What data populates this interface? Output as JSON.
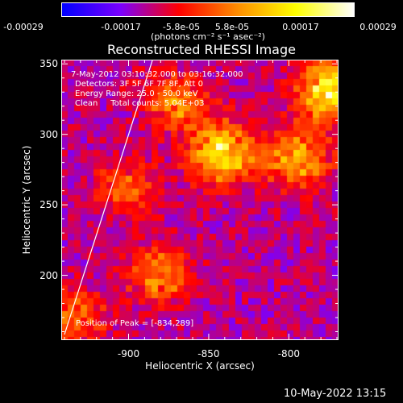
{
  "chart_data": {
    "type": "heatmap",
    "title": "Reconstructed RHESSI Image",
    "xlabel": "Heliocentric X (arcsec)",
    "ylabel": "Heliocentric Y (arcsec)",
    "xlim": [
      -942,
      -769
    ],
    "ylim": [
      154,
      353
    ],
    "x_ticks": [
      "-900",
      "-850",
      "-800"
    ],
    "x_tick_values": [
      -900,
      -850,
      -800
    ],
    "y_ticks": [
      "200",
      "250",
      "300",
      "350"
    ],
    "y_tick_values": [
      200,
      250,
      300,
      350
    ],
    "colorbar": {
      "ticks": [
        "-0.00029",
        "-0.00017",
        "-5.8e-05",
        "5.8e-05",
        "0.00017",
        "0.00029"
      ],
      "tick_values": [
        -0.00029,
        -0.00017,
        -5.8e-05,
        5.8e-05,
        0.00017,
        0.00029
      ],
      "unit": "(photons cm⁻² s⁻¹ asec⁻²)",
      "colors": [
        "#0000ff",
        "#7a00ff",
        "#ff0000",
        "#ff8c00",
        "#ffff00",
        "#ffffff"
      ]
    },
    "annotations": {
      "time": "7-May-2012 03:10:32.000 to 03:16:32.000",
      "detectors": "Detectors: 3F 5F 6F 7F 8F, Att 0",
      "energy": "Energy Range: 25.0 - 50.0 keV",
      "clean": "Clean     Total counts: 5.04E+03",
      "peak": "Position of Peak = [-834,289]"
    },
    "peak": [
      -834,
      289
    ],
    "limb_line": [
      [
        -940,
        158
      ],
      [
        -885,
        353
      ]
    ],
    "bright_regions": [
      {
        "x": -842,
        "y": 287,
        "value": 0.00029
      },
      {
        "x": -775,
        "y": 330,
        "value": 0.00029
      },
      {
        "x": -870,
        "y": 323,
        "value": 0.00017
      },
      {
        "x": -795,
        "y": 283,
        "value": 0.00022
      },
      {
        "x": -880,
        "y": 200,
        "value": 0.00018
      },
      {
        "x": -900,
        "y": 262,
        "value": 0.00012
      },
      {
        "x": -935,
        "y": 170,
        "value": 0.00015
      }
    ]
  },
  "footer": {
    "date": "10-May-2022 13:15"
  }
}
